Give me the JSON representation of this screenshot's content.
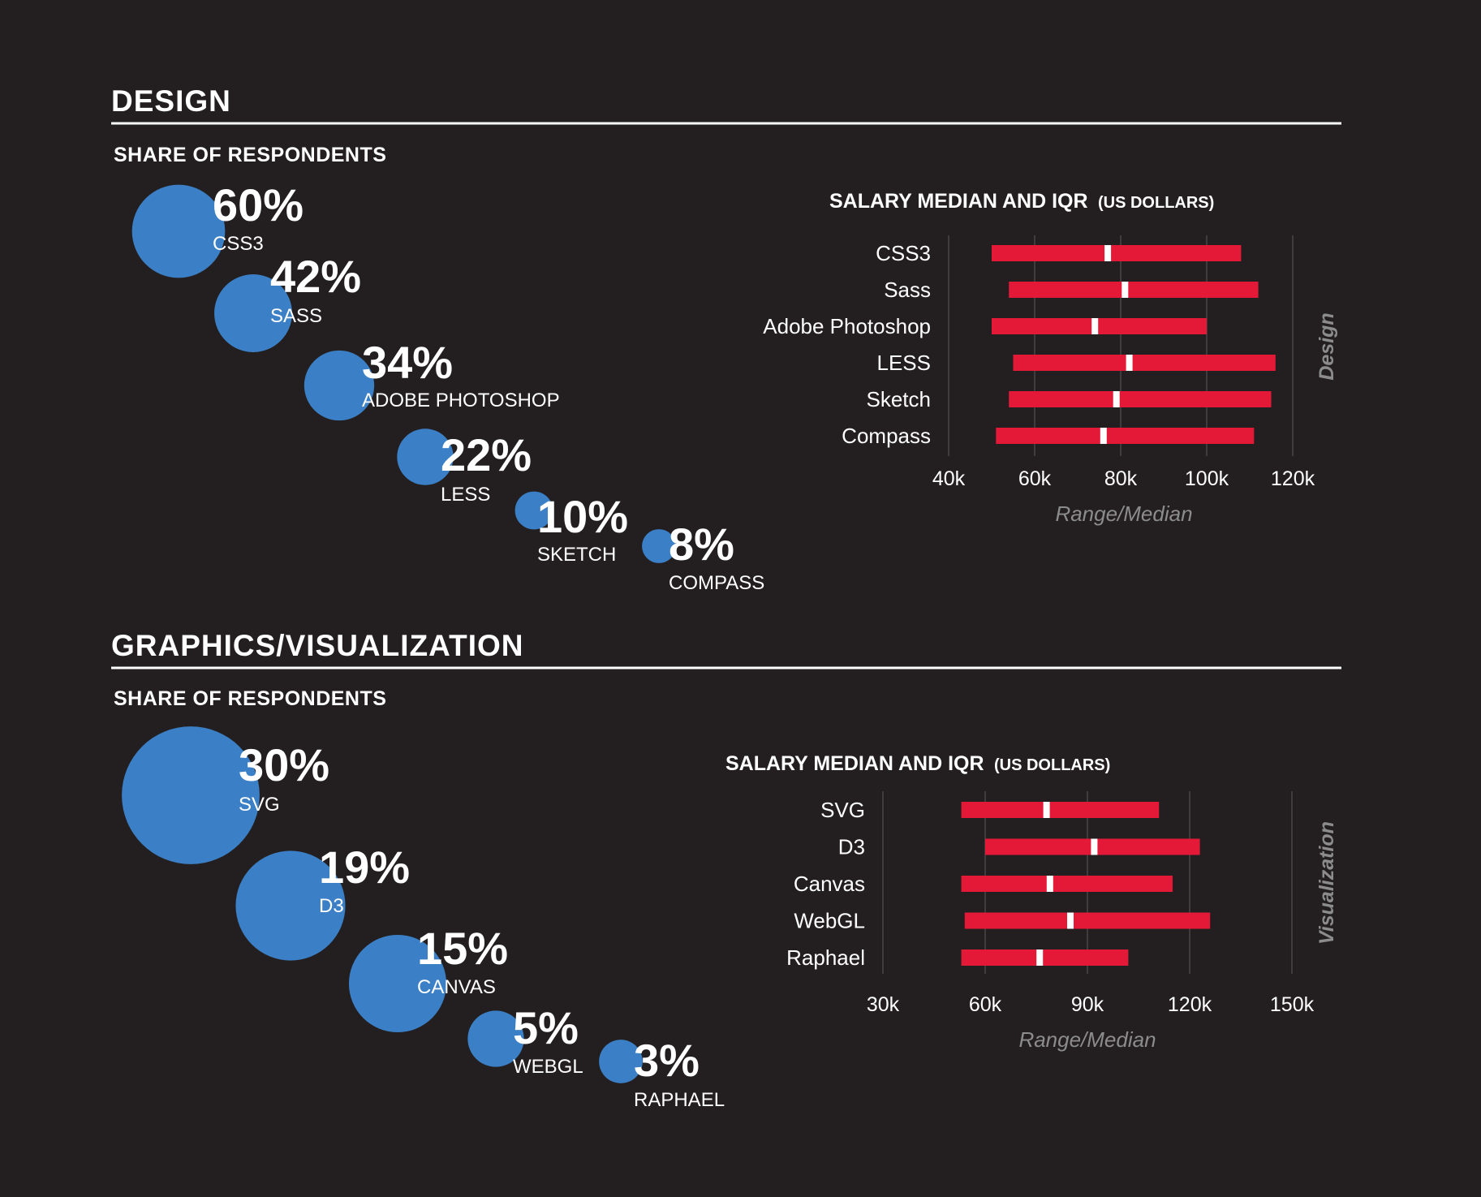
{
  "colors": {
    "background": "#231f20",
    "bubble": "#3b80c6",
    "bar": "#e31937",
    "median": "#ffffff",
    "gridline": "#4a4647",
    "muted": "#8c8c8c"
  },
  "sections": [
    {
      "title": "DESIGN",
      "share_title": "SHARE OF RESPONDENTS",
      "salary_title_main": "SALARY MEDIAN AND IQR",
      "salary_title_sub": "(US DOLLARS)",
      "side_label": "Design",
      "axis_title": "Range/Median",
      "tick_labels": [
        "40k",
        "60k",
        "80k",
        "100k",
        "120k"
      ],
      "bubbles": [
        {
          "pct_label": "60%",
          "name": "CSS3"
        },
        {
          "pct_label": "42%",
          "name": "SASS"
        },
        {
          "pct_label": "34%",
          "name": "ADOBE PHOTOSHOP"
        },
        {
          "pct_label": "22%",
          "name": "LESS"
        },
        {
          "pct_label": "10%",
          "name": "SKETCH"
        },
        {
          "pct_label": "8%",
          "name": "COMPASS"
        }
      ]
    },
    {
      "title": "GRAPHICS/VISUALIZATION",
      "share_title": "SHARE OF RESPONDENTS",
      "salary_title_main": "SALARY MEDIAN AND IQR",
      "salary_title_sub": "(US DOLLARS)",
      "side_label": "Visualization",
      "axis_title": "Range/Median",
      "tick_labels": [
        "30k",
        "60k",
        "90k",
        "120k",
        "150k"
      ],
      "bubbles": [
        {
          "pct_label": "30%",
          "name": "SVG"
        },
        {
          "pct_label": "19%",
          "name": "D3"
        },
        {
          "pct_label": "15%",
          "name": "CANVAS"
        },
        {
          "pct_label": "5%",
          "name": "WEBGL"
        },
        {
          "pct_label": "3%",
          "name": "RAPHAEL"
        }
      ]
    }
  ],
  "chart_data": [
    {
      "type": "bubble",
      "section": "DESIGN",
      "title": "SHARE OF RESPONDENTS",
      "categories": [
        "CSS3",
        "SASS",
        "ADOBE PHOTOSHOP",
        "LESS",
        "SKETCH",
        "COMPASS"
      ],
      "values": [
        60,
        42,
        34,
        22,
        10,
        8
      ],
      "unit": "%"
    },
    {
      "type": "range_bar",
      "section": "DESIGN",
      "title": "SALARY MEDIAN AND IQR (US DOLLARS)",
      "xlabel": "Range/Median",
      "xlim": [
        40000,
        120000
      ],
      "xticks": [
        40000,
        60000,
        80000,
        100000,
        120000
      ],
      "categories": [
        "CSS3",
        "Sass",
        "Adobe Photoshop",
        "LESS",
        "Sketch",
        "Compass"
      ],
      "q1": [
        50000,
        54000,
        50000,
        55000,
        54000,
        51000
      ],
      "median": [
        77000,
        81000,
        74000,
        82000,
        79000,
        76000
      ],
      "q3": [
        108000,
        112000,
        100000,
        116000,
        115000,
        111000
      ]
    },
    {
      "type": "bubble",
      "section": "GRAPHICS/VISUALIZATION",
      "title": "SHARE OF RESPONDENTS",
      "categories": [
        "SVG",
        "D3",
        "CANVAS",
        "WEBGL",
        "RAPHAEL"
      ],
      "values": [
        30,
        19,
        15,
        5,
        3
      ],
      "unit": "%"
    },
    {
      "type": "range_bar",
      "section": "GRAPHICS/VISUALIZATION",
      "title": "SALARY MEDIAN AND IQR (US DOLLARS)",
      "xlabel": "Range/Median",
      "xlim": [
        30000,
        150000
      ],
      "xticks": [
        30000,
        60000,
        90000,
        120000,
        150000
      ],
      "categories": [
        "SVG",
        "D3",
        "Canvas",
        "WebGL",
        "Raphael"
      ],
      "q1": [
        53000,
        60000,
        53000,
        54000,
        53000
      ],
      "median": [
        78000,
        92000,
        79000,
        85000,
        76000
      ],
      "q3": [
        111000,
        123000,
        115000,
        126000,
        102000
      ]
    }
  ]
}
